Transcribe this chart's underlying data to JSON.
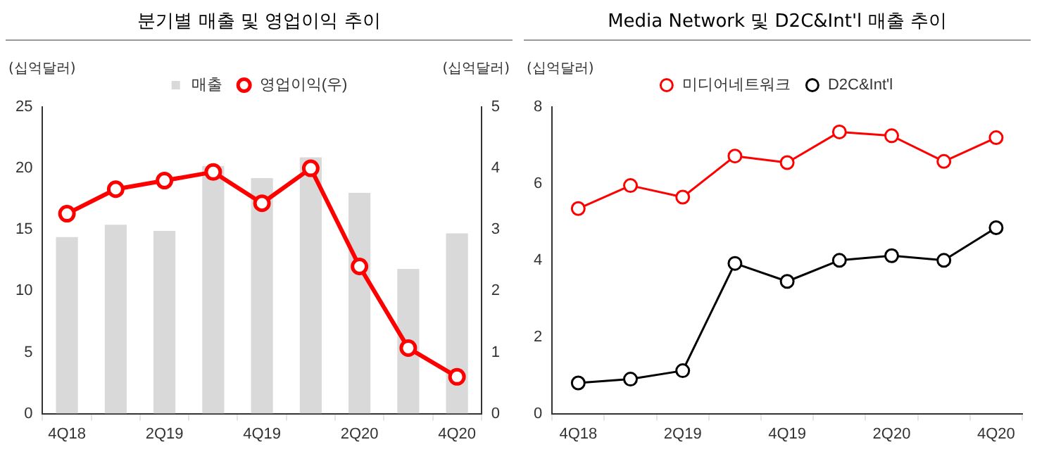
{
  "chart_data": [
    {
      "type": "bar",
      "title": "분기별 매출 및 영업이익 추이",
      "ylabel": "(십억달러)",
      "y2label": "(십억달러)",
      "categories": [
        "4Q18",
        null,
        "2Q19",
        null,
        "4Q19",
        null,
        "2Q20",
        null,
        "4Q20"
      ],
      "series": [
        {
          "name": "매출",
          "color": "#d9d9d9",
          "values": [
            14.4,
            15.4,
            14.9,
            20.2,
            19.2,
            20.9,
            18.0,
            11.8,
            14.7
          ]
        },
        {
          "type": "line",
          "name": "영업이익(우)",
          "color": "#ff0000",
          "axis": "y2",
          "marker": "circle",
          "values": [
            3.26,
            3.66,
            3.8,
            3.94,
            3.43,
            4.0,
            2.4,
            1.07,
            0.6
          ]
        }
      ],
      "ylim": [
        0,
        25
      ],
      "yticks": [
        0,
        5,
        10,
        15,
        20,
        25
      ],
      "y2lim": [
        0,
        5
      ],
      "y2ticks": [
        0,
        1,
        2,
        3,
        4,
        5
      ],
      "grid": false,
      "legend": "top"
    },
    {
      "type": "line",
      "title": "Media Network 및 D2C&Int'l 매출 추이",
      "ylabel": "(십억달러)",
      "categories": [
        "4Q18",
        null,
        "2Q19",
        null,
        "4Q19",
        null,
        "2Q20",
        null,
        "4Q20"
      ],
      "series": [
        {
          "name": "미디어네트워크",
          "color": "#ff0000",
          "values": [
            5.35,
            5.95,
            5.65,
            6.72,
            6.55,
            7.35,
            7.25,
            6.58,
            7.2
          ]
        },
        {
          "name": "D2C&Int'l",
          "color": "#000000",
          "values": [
            0.8,
            0.9,
            1.12,
            3.92,
            3.45,
            4.0,
            4.12,
            4.0,
            4.85
          ]
        }
      ],
      "ylim": [
        0,
        8
      ],
      "yticks": [
        0,
        2,
        4,
        6,
        8
      ],
      "grid": false,
      "legend": "top",
      "marker": "circle"
    }
  ]
}
